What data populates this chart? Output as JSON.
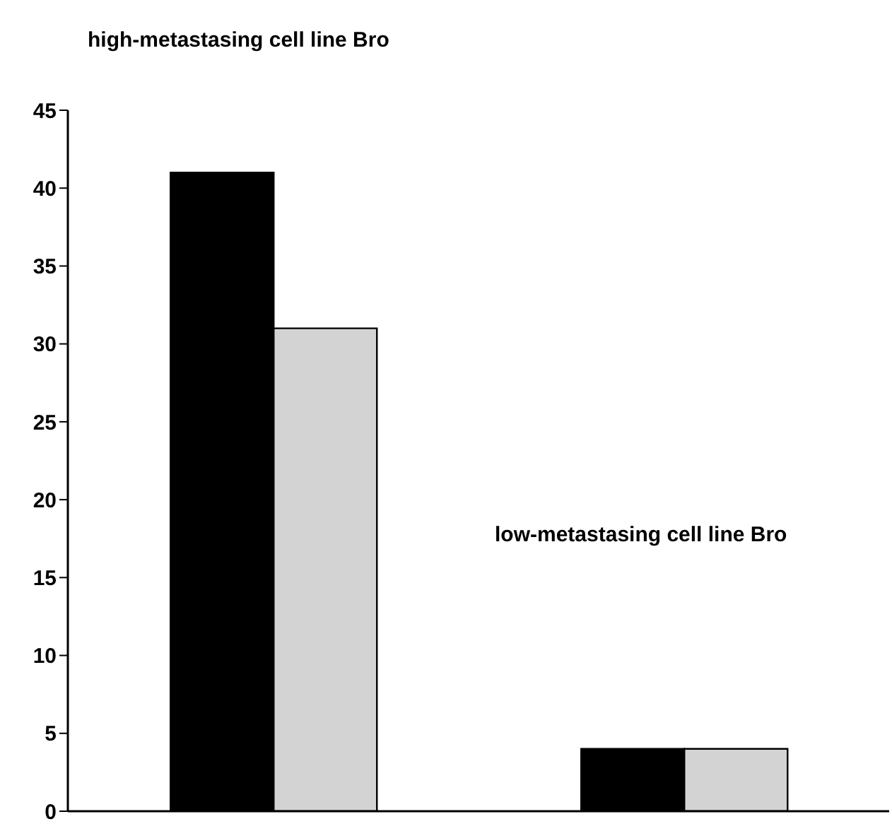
{
  "chart_data": {
    "type": "bar",
    "title": "high-metastasing cell line Bro",
    "annotations": [
      "low-metastasing cell line Bro"
    ],
    "categories": [
      null,
      null
    ],
    "series": [
      {
        "color": "#000000",
        "values": [
          41,
          4
        ]
      },
      {
        "color": "#d3d3d3",
        "values": [
          31,
          4
        ]
      }
    ],
    "ylim": [
      0,
      45
    ],
    "yticks": [
      0,
      5,
      10,
      15,
      20,
      25,
      30,
      35,
      40,
      45
    ],
    "grid": false,
    "legend": false
  }
}
